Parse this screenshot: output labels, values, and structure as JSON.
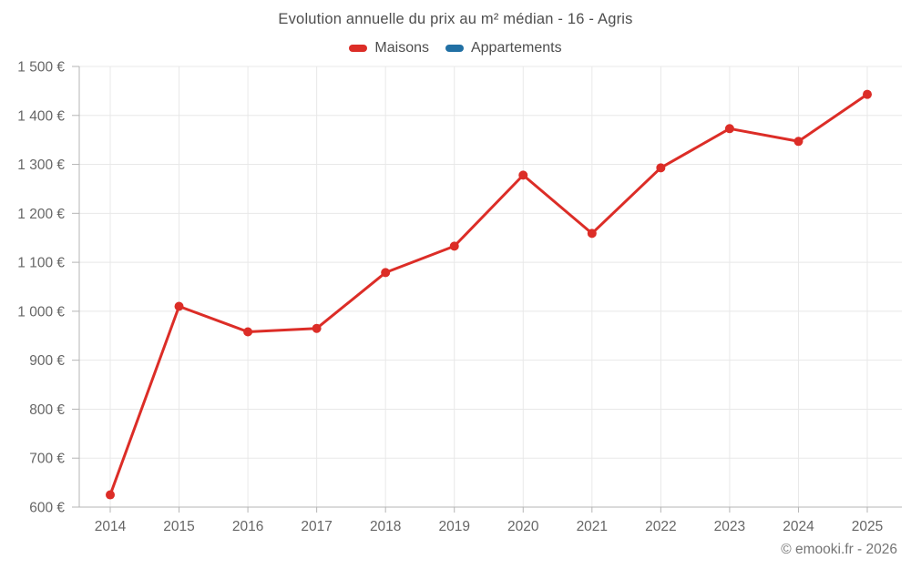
{
  "title": "Evolution annuelle du prix au m² médian - 16 - Agris",
  "footer": "© emooki.fr - 2026",
  "chart_data": {
    "type": "line",
    "title": "Evolution annuelle du prix au m² médian - 16 - Agris",
    "categories": [
      "2014",
      "2015",
      "2016",
      "2017",
      "2018",
      "2019",
      "2020",
      "2021",
      "2022",
      "2023",
      "2024",
      "2025"
    ],
    "series": [
      {
        "name": "Maisons",
        "color": "#dc2d27",
        "values": [
          625,
          1010,
          958,
          965,
          1079,
          1133,
          1278,
          1159,
          1293,
          1373,
          1347,
          1443
        ]
      },
      {
        "name": "Appartements",
        "color": "#2170a4",
        "values": []
      }
    ],
    "ylim": [
      600,
      1500
    ],
    "ytick_step": 100,
    "ytick_labels": [
      "600 €",
      "700 €",
      "800 €",
      "900 €",
      "1 000 €",
      "1 100 €",
      "1 200 €",
      "1 300 €",
      "1 400 €",
      "1 500 €"
    ],
    "xlabel": "",
    "ylabel": "",
    "grid": true,
    "legend_position": "top",
    "grid_color": "#e8e8e8",
    "axis_color": "#b5b5b5"
  }
}
